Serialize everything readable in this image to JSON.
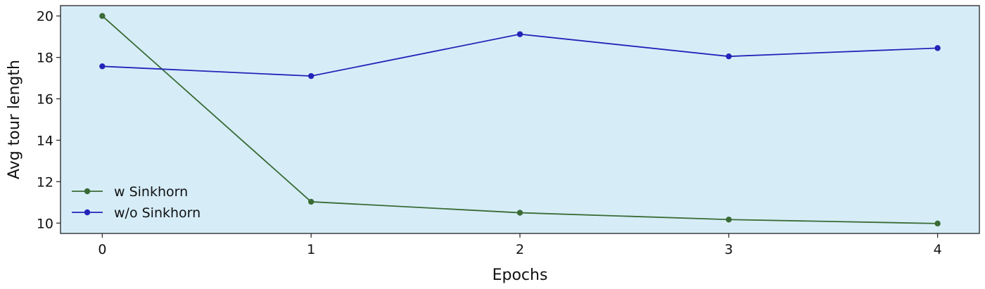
{
  "chart_data": {
    "type": "line",
    "x": [
      0,
      1,
      2,
      3,
      4
    ],
    "xlabel": "Epochs",
    "ylabel": "Avg tour length",
    "xticks": [
      0,
      1,
      2,
      3,
      4
    ],
    "yticks": [
      10,
      12,
      14,
      16,
      18,
      20
    ],
    "xlim": [
      -0.2,
      4.2
    ],
    "ylim": [
      9.5,
      20.5
    ],
    "grid": false,
    "legend_position": "lower-left",
    "background_color": "#d6edf8",
    "series": [
      {
        "name": "w Sinkhorn",
        "color": "#3a6b35",
        "values": [
          20.0,
          11.03,
          10.5,
          10.17,
          9.98
        ]
      },
      {
        "name": "w/o Sinkhorn",
        "color": "#2424b8",
        "values": [
          17.57,
          17.1,
          19.12,
          18.05,
          18.45
        ]
      }
    ]
  }
}
